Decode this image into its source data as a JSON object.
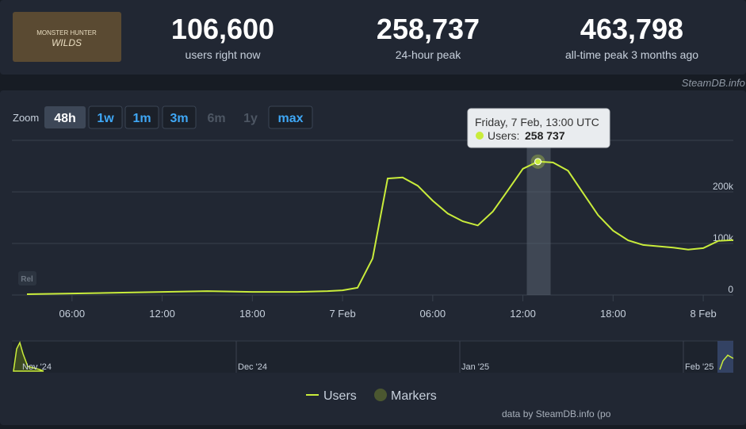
{
  "header": {
    "game_art": [
      "MONSTER HUNTER",
      "WILDS"
    ],
    "stats": [
      {
        "value": "106,600",
        "label": "users right now"
      },
      {
        "value": "258,737",
        "label": "24-hour peak"
      },
      {
        "value": "463,798",
        "label": "all-time peak 3 months ago"
      }
    ],
    "watermark": "SteamDB.info"
  },
  "zoom": {
    "label": "Zoom",
    "buttons": [
      "48h",
      "1w",
      "1m",
      "3m",
      "6m",
      "1y",
      "max"
    ]
  },
  "badge": "Rel",
  "chart_data": {
    "type": "line",
    "x": [
      3,
      6,
      9,
      12,
      15,
      18,
      21,
      23,
      24,
      25,
      26,
      27,
      28,
      29,
      30,
      31,
      32,
      33,
      34,
      35,
      36,
      37,
      38,
      39,
      40,
      41,
      42,
      43,
      44,
      46,
      47,
      48,
      49,
      50
    ],
    "series": [
      {
        "name": "Users",
        "color": "#c9ec3b",
        "values": [
          1500,
          3000,
          4500,
          6000,
          7500,
          6000,
          6000,
          7500,
          9000,
          14000,
          71000,
          226000,
          228000,
          212000,
          183000,
          158000,
          143000,
          135000,
          162000,
          203000,
          245000,
          258737,
          257000,
          241000,
          198000,
          155000,
          125000,
          106000,
          97000,
          92000,
          88000,
          91000,
          105000,
          106600
        ]
      }
    ],
    "xlim": [
      2,
      50
    ],
    "xticks": [
      {
        "value": 6,
        "label": "06:00"
      },
      {
        "value": 12,
        "label": "12:00"
      },
      {
        "value": 18,
        "label": "18:00"
      },
      {
        "value": 24,
        "label": "7 Feb"
      },
      {
        "value": 30,
        "label": "06:00"
      },
      {
        "value": 36,
        "label": "12:00"
      },
      {
        "value": 42,
        "label": "18:00"
      },
      {
        "value": 48,
        "label": "8 Feb"
      }
    ],
    "ylim": [
      0,
      300000
    ],
    "yticks": [
      0,
      {
        "value": 100000,
        "label": "100k"
      },
      {
        "value": 200000,
        "label": "200k"
      },
      300000
    ],
    "grid": true,
    "tooltip": {
      "title": "Friday, 7 Feb, 13:00 UTC",
      "label": "Users:",
      "value": 258737,
      "value_label": "258 737"
    },
    "legend": {
      "markers": {
        "name": "Markers",
        "color": "#4b5730"
      }
    }
  },
  "navigator": {
    "labels": [
      "Nov '24",
      "Dec '24",
      "Jan '25",
      "Feb '25"
    ]
  },
  "credit": "data by SteamDB.info (po"
}
